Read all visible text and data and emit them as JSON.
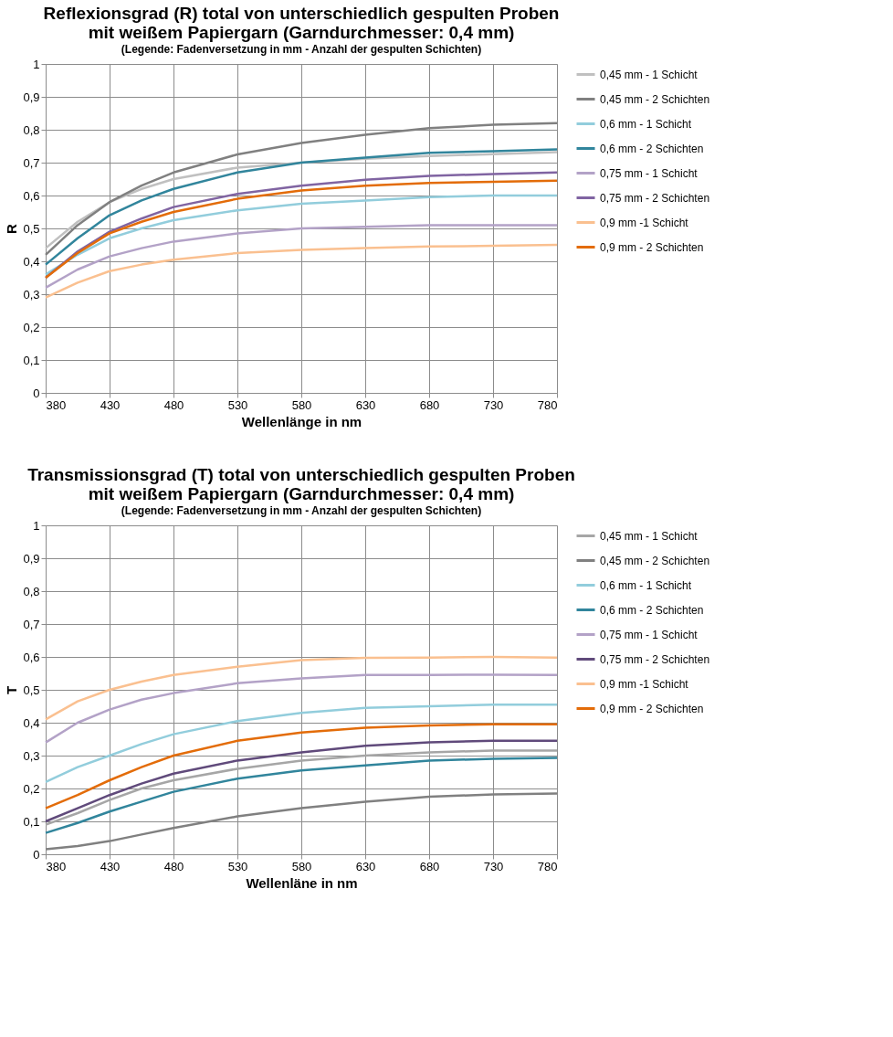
{
  "chart_data": [
    {
      "type": "line",
      "title": [
        "Reflexionsgrad (R) total von unterschiedlich gespulten Proben",
        "mit weißem Papiergarn (Garndurchmesser: 0,4 mm)"
      ],
      "subtitle": "(Legende: Fadenversetzung in mm -  Anzahl der gespulten Schichten)",
      "xlabel": "Wellenlänge in nm",
      "ylabel": "R",
      "x": [
        380,
        405,
        430,
        455,
        480,
        530,
        580,
        630,
        680,
        730,
        780
      ],
      "series": [
        {
          "name": "0,45 mm - 1 Schicht",
          "color": "#c0c0c0",
          "values": [
            0.44,
            0.52,
            0.58,
            0.62,
            0.65,
            0.685,
            0.7,
            0.712,
            0.72,
            0.726,
            0.732
          ]
        },
        {
          "name": "0,45 mm - 2 Schichten",
          "color": "#808080",
          "values": [
            0.42,
            0.51,
            0.58,
            0.63,
            0.67,
            0.725,
            0.76,
            0.785,
            0.805,
            0.815,
            0.82
          ]
        },
        {
          "name": "0,6 mm - 1 Schicht",
          "color": "#92cddc",
          "values": [
            0.36,
            0.42,
            0.47,
            0.5,
            0.525,
            0.555,
            0.575,
            0.585,
            0.595,
            0.6,
            0.6
          ]
        },
        {
          "name": "0,6 mm - 2 Schichten",
          "color": "#31859c",
          "values": [
            0.39,
            0.47,
            0.54,
            0.585,
            0.62,
            0.67,
            0.7,
            0.715,
            0.73,
            0.735,
            0.74
          ]
        },
        {
          "name": "0,75 mm - 1 Schicht",
          "color": "#b3a2c7",
          "values": [
            0.32,
            0.375,
            0.415,
            0.44,
            0.46,
            0.485,
            0.5,
            0.505,
            0.51,
            0.51,
            0.51
          ]
        },
        {
          "name": "0,75 mm - 2 Schichten",
          "color": "#8064a2",
          "values": [
            0.35,
            0.43,
            0.49,
            0.53,
            0.565,
            0.605,
            0.63,
            0.648,
            0.66,
            0.665,
            0.67
          ]
        },
        {
          "name": "0,9 mm -1 Schicht",
          "color": "#fac090",
          "values": [
            0.29,
            0.335,
            0.37,
            0.39,
            0.405,
            0.425,
            0.435,
            0.44,
            0.445,
            0.447,
            0.45
          ]
        },
        {
          "name": "0,9 mm - 2 Schichten",
          "color": "#e36c09",
          "values": [
            0.35,
            0.425,
            0.485,
            0.52,
            0.55,
            0.59,
            0.615,
            0.63,
            0.638,
            0.642,
            0.645
          ]
        }
      ],
      "xlim": [
        380,
        780
      ],
      "xticks": [
        380,
        430,
        480,
        530,
        580,
        630,
        680,
        730,
        780
      ],
      "ylim": [
        0,
        1
      ],
      "yticks": [
        0,
        {
          "value": 0.1,
          "label": "0,1"
        },
        {
          "value": 0.2,
          "label": "0,2"
        },
        {
          "value": 0.3,
          "label": "0,3"
        },
        {
          "value": 0.4,
          "label": "0,4"
        },
        {
          "value": 0.5,
          "label": "0,5"
        },
        {
          "value": 0.6,
          "label": "0,6"
        },
        {
          "value": 0.7,
          "label": "0,7"
        },
        {
          "value": 0.8,
          "label": "0,8"
        },
        {
          "value": 0.9,
          "label": "0,9"
        },
        1
      ],
      "grid": true,
      "legend": "right",
      "marker": "none",
      "line_style": "solid"
    },
    {
      "type": "line",
      "title": [
        "Transmissionsgrad (T) total von unterschiedlich gespulten Proben",
        "mit weißem Papiergarn (Garndurchmesser: 0,4 mm)"
      ],
      "subtitle": "(Legende: Fadenversetzung in mm -  Anzahl der gespulten Schichten)",
      "xlabel": "Wellenläne in nm",
      "ylabel": "T",
      "x": [
        380,
        405,
        430,
        455,
        480,
        530,
        580,
        630,
        680,
        730,
        780
      ],
      "series": [
        {
          "name": "0,45 mm - 1 Schicht",
          "color": "#a6a6a6",
          "values": [
            0.09,
            0.125,
            0.165,
            0.2,
            0.225,
            0.26,
            0.285,
            0.3,
            0.31,
            0.315,
            0.315
          ]
        },
        {
          "name": "0,45 mm - 2 Schichten",
          "color": "#808080",
          "values": [
            0.015,
            0.025,
            0.04,
            0.06,
            0.08,
            0.115,
            0.14,
            0.16,
            0.175,
            0.182,
            0.185
          ]
        },
        {
          "name": "0,6 mm - 1 Schicht",
          "color": "#92cddc",
          "values": [
            0.22,
            0.265,
            0.3,
            0.335,
            0.365,
            0.405,
            0.43,
            0.445,
            0.45,
            0.455,
            0.455
          ]
        },
        {
          "name": "0,6 mm - 2 Schichten",
          "color": "#31859c",
          "values": [
            0.065,
            0.095,
            0.13,
            0.16,
            0.19,
            0.23,
            0.255,
            0.27,
            0.285,
            0.29,
            0.293
          ]
        },
        {
          "name": "0,75 mm - 1 Schicht",
          "color": "#b3a2c7",
          "values": [
            0.34,
            0.4,
            0.44,
            0.47,
            0.49,
            0.52,
            0.535,
            0.545,
            0.545,
            0.546,
            0.545
          ]
        },
        {
          "name": "0,75 mm - 2 Schichten",
          "color": "#604a7b",
          "values": [
            0.1,
            0.14,
            0.18,
            0.215,
            0.245,
            0.285,
            0.31,
            0.33,
            0.34,
            0.345,
            0.345
          ]
        },
        {
          "name": "0,9 mm -1 Schicht",
          "color": "#fac090",
          "values": [
            0.41,
            0.465,
            0.5,
            0.525,
            0.545,
            0.57,
            0.59,
            0.597,
            0.598,
            0.6,
            0.598
          ]
        },
        {
          "name": "0,9 mm - 2 Schichten",
          "color": "#e36c09",
          "values": [
            0.14,
            0.18,
            0.225,
            0.265,
            0.3,
            0.345,
            0.37,
            0.385,
            0.392,
            0.395,
            0.395
          ]
        }
      ],
      "xlim": [
        380,
        780
      ],
      "xticks": [
        380,
        430,
        480,
        530,
        580,
        630,
        680,
        730,
        780
      ],
      "ylim": [
        0,
        1
      ],
      "yticks": [
        0,
        {
          "value": 0.1,
          "label": "0,1"
        },
        {
          "value": 0.2,
          "label": "0,2"
        },
        {
          "value": 0.3,
          "label": "0,3"
        },
        {
          "value": 0.4,
          "label": "0,4"
        },
        {
          "value": 0.5,
          "label": "0,5"
        },
        {
          "value": 0.6,
          "label": "0,6"
        },
        {
          "value": 0.7,
          "label": "0,7"
        },
        {
          "value": 0.8,
          "label": "0,8"
        },
        {
          "value": 0.9,
          "label": "0,9"
        },
        1
      ],
      "grid": true,
      "legend": "right",
      "marker": "none",
      "line_style": "solid"
    }
  ]
}
